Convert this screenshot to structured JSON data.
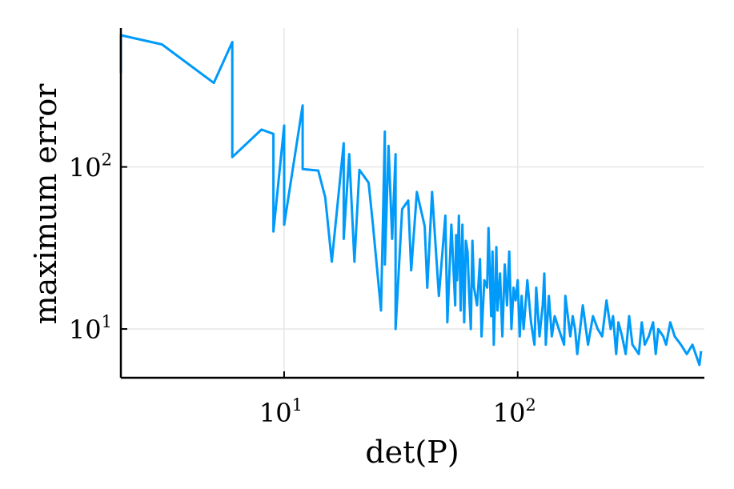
{
  "chart_data": {
    "type": "line",
    "title": "",
    "xlabel": "det(P)",
    "ylabel": "maximum error",
    "xscale": "log",
    "yscale": "log",
    "xlim": [
      2,
      630
    ],
    "ylim": [
      5,
      720
    ],
    "grid": true,
    "legend": "none",
    "line_color": "#009AFA",
    "xticks": [
      {
        "value": 10,
        "base": "10",
        "exp": "1"
      },
      {
        "value": 100,
        "base": "10",
        "exp": "2"
      }
    ],
    "yticks": [
      {
        "value": 10,
        "base": "10",
        "exp": "1"
      },
      {
        "value": 100,
        "base": "10",
        "exp": "2"
      }
    ],
    "series": [
      {
        "x": [
          2.0,
          2.0,
          3.0,
          5.0,
          6.0,
          6.0,
          8.0,
          9.0,
          9.0,
          10.0,
          10.0,
          12.0,
          12.0,
          14.0,
          15.0,
          16.0,
          18.0,
          18.0,
          19.0,
          20.0,
          21.0,
          23.0,
          24.0,
          26.0,
          27.0,
          27.0,
          28.0,
          29.0,
          30.0,
          30.0,
          32.0,
          34.0,
          35.0,
          37.0,
          40.0,
          41.0,
          43.0,
          46.0,
          49.0,
          50.0,
          52.0,
          54.0,
          54.5,
          55.0,
          56.0,
          57.0,
          58.0,
          59.0,
          60.0,
          61.0,
          62.0,
          63.0,
          64.0,
          65.0,
          67.0,
          69.0,
          70.0,
          72.0,
          74.0,
          75.0,
          77.0,
          78.0,
          79.0,
          81.0,
          82.0,
          84.0,
          86.0,
          88.0,
          90.0,
          92.0,
          94.0,
          96.0,
          98.0,
          100.0,
          102.0,
          104.0,
          106.0,
          108.0,
          110.0,
          114.0,
          118.0,
          120.0,
          124.0,
          128.0,
          130.0,
          132.0,
          136.0,
          140.0,
          144.0,
          150.0,
          158.0,
          160.0,
          168.0,
          172.0,
          176.0,
          180.0,
          190.0,
          200.0,
          210.0,
          220.0,
          230.0,
          240.0,
          250.0,
          256.0,
          264.0,
          270.0,
          280.0,
          290.0,
          300.0,
          310.0,
          330.0,
          340.0,
          350.0,
          364.0,
          380.0,
          390.0,
          400.0,
          420.0,
          432.0,
          450.0,
          470.0,
          500.0,
          530.0,
          560.0,
          600.0,
          610.0
        ],
        "y": [
          380,
          650,
          570,
          330,
          590,
          115,
          170,
          160,
          40,
          180,
          44,
          240,
          97,
          95,
          65,
          26,
          140,
          36,
          120,
          26,
          96,
          80,
          44,
          13,
          165,
          25,
          135,
          36,
          120,
          10,
          55,
          62,
          23,
          70,
          43,
          18,
          70,
          16,
          50,
          11,
          44,
          14,
          38,
          20,
          50,
          13,
          44,
          11,
          35,
          30,
          16,
          10,
          35,
          18,
          14,
          27,
          9,
          20,
          18,
          42,
          12,
          30,
          8,
          32,
          13,
          22,
          9,
          25,
          14,
          30,
          10,
          18,
          15,
          20,
          9,
          16,
          10,
          14,
          20,
          11,
          8,
          18,
          9,
          14,
          22,
          8,
          16,
          9,
          12,
          10,
          8,
          16,
          9,
          12,
          10,
          7,
          14,
          8,
          12,
          10,
          9,
          15,
          10,
          12,
          7,
          11,
          9,
          7,
          12,
          8,
          7,
          11,
          8,
          9,
          11,
          7,
          10,
          9,
          8,
          11,
          9,
          8,
          7,
          8,
          6,
          7.3
        ]
      }
    ]
  }
}
